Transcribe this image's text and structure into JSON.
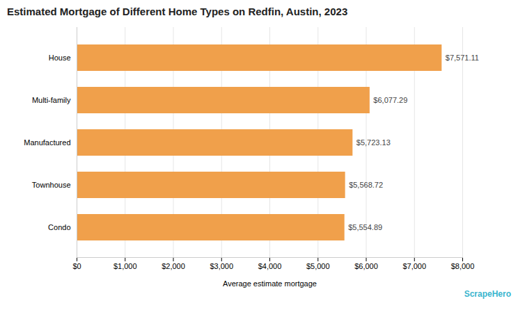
{
  "chart_data": {
    "type": "bar",
    "orientation": "horizontal",
    "title": "Estimated Mortgage of Different Home Types on Redfin, Austin, 2023",
    "categories": [
      "Condo",
      "Townhouse",
      "Manufactured",
      "Multi-family",
      "House"
    ],
    "values": [
      5554.89,
      5568.72,
      5723.13,
      6077.29,
      7571.11
    ],
    "value_labels": [
      "$5,554.89",
      "$5,568.72",
      "$5,723.13",
      "$6,077.29",
      "$7,571.11"
    ],
    "data_labels": true,
    "color": "#F0A04B",
    "xlabel": "Average estimate mortgage",
    "xlim": [
      0,
      8000
    ],
    "xticks": [
      {
        "value": 0,
        "label": "$0"
      },
      {
        "value": 1000,
        "label": "$1,000"
      },
      {
        "value": 2000,
        "label": "$2,000"
      },
      {
        "value": 3000,
        "label": "$3,000"
      },
      {
        "value": 4000,
        "label": "$4,000"
      },
      {
        "value": 5000,
        "label": "$5,000"
      },
      {
        "value": 6000,
        "label": "$6,000"
      },
      {
        "value": 7000,
        "label": "$7,000"
      },
      {
        "value": 8000,
        "label": "$8,000"
      }
    ],
    "grid": true,
    "annotations": [
      {
        "text": "ScrapeHero",
        "color": "#3ab5ce"
      }
    ]
  }
}
